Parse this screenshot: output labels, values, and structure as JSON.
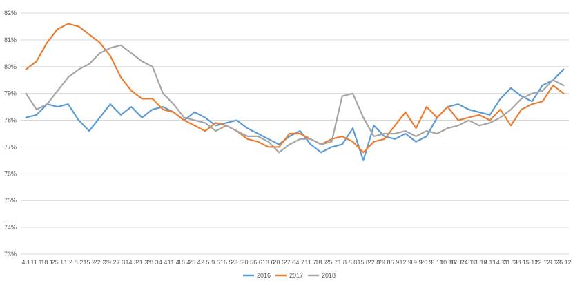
{
  "chart_data": {
    "type": "line",
    "ylim": [
      73,
      82
    ],
    "y_ticks": [
      "73%",
      "74%",
      "75%",
      "76%",
      "77%",
      "78%",
      "79%",
      "80%",
      "81%",
      "82%"
    ],
    "x_tick_labels": [
      "4.1",
      "11.1",
      "18.1",
      "25.1",
      "1.2",
      "8.2",
      "15.2",
      "22.2",
      "29.2",
      "7.3",
      "14.3",
      "21.3",
      "28.3",
      "4.4",
      "11.4",
      "18.4",
      "25.4",
      "2.5",
      "9.5",
      "16.5",
      "23.5",
      "30.5",
      "6.6",
      "13.6",
      "20.6",
      "27.6",
      "4.7",
      "11.7",
      "18.7",
      "25.7",
      "1.8",
      "8.8",
      "15.8",
      "22.8",
      "29.8",
      "5.9",
      "12.9",
      "19.9",
      "26.9",
      "3.10",
      "10.10",
      "17.10",
      "24.10",
      "31.10",
      "7.11",
      "14.11",
      "21.11",
      "28.11",
      "5.12",
      "12.12",
      "19.12",
      "26.12"
    ],
    "grid": true,
    "legend_position": "bottom",
    "series": [
      {
        "name": "2016",
        "color": "#5B9BD5",
        "values": [
          78.1,
          78.2,
          78.6,
          78.5,
          78.6,
          78.0,
          77.6,
          78.1,
          78.6,
          78.2,
          78.5,
          78.1,
          78.4,
          78.5,
          78.3,
          78.0,
          78.3,
          78.1,
          77.8,
          77.9,
          78.0,
          77.7,
          77.5,
          77.3,
          77.1,
          77.4,
          77.6,
          77.1,
          76.8,
          77.0,
          77.1,
          77.7,
          76.5,
          77.8,
          77.4,
          77.3,
          77.5,
          77.2,
          77.4,
          78.1,
          78.5,
          78.6,
          78.4,
          78.3,
          78.2,
          78.8,
          79.2,
          78.9,
          78.7,
          79.3,
          79.5,
          79.9
        ]
      },
      {
        "name": "2017",
        "color": "#ED7D31",
        "values": [
          79.9,
          80.2,
          80.9,
          81.4,
          81.6,
          81.5,
          81.2,
          80.9,
          80.4,
          79.6,
          79.1,
          78.8,
          78.8,
          78.4,
          78.3,
          78.0,
          77.8,
          77.6,
          77.9,
          77.8,
          77.6,
          77.3,
          77.2,
          77.0,
          77.0,
          77.5,
          77.5,
          77.3,
          77.1,
          77.3,
          77.4,
          77.2,
          76.8,
          77.2,
          77.3,
          77.8,
          78.3,
          77.7,
          78.5,
          78.1,
          78.5,
          78.0,
          78.1,
          78.2,
          78.0,
          78.4,
          77.8,
          78.4,
          78.6,
          78.7,
          79.3,
          79.0
        ]
      },
      {
        "name": "2018",
        "color": "#A5A5A5",
        "values": [
          79.0,
          78.4,
          78.6,
          79.1,
          79.6,
          79.9,
          80.1,
          80.5,
          80.7,
          80.8,
          80.5,
          80.2,
          80.0,
          79.0,
          78.6,
          78.1,
          78.0,
          77.9,
          77.6,
          77.8,
          77.6,
          77.4,
          77.4,
          77.2,
          76.8,
          77.1,
          77.3,
          77.3,
          77.1,
          77.2,
          78.9,
          79.0,
          78.1,
          77.4,
          77.5,
          77.5,
          77.6,
          77.4,
          77.6,
          77.5,
          77.7,
          77.8,
          78.0,
          77.8,
          77.9,
          78.1,
          78.4,
          78.8,
          79.0,
          79.1,
          79.5,
          79.3
        ]
      }
    ]
  }
}
